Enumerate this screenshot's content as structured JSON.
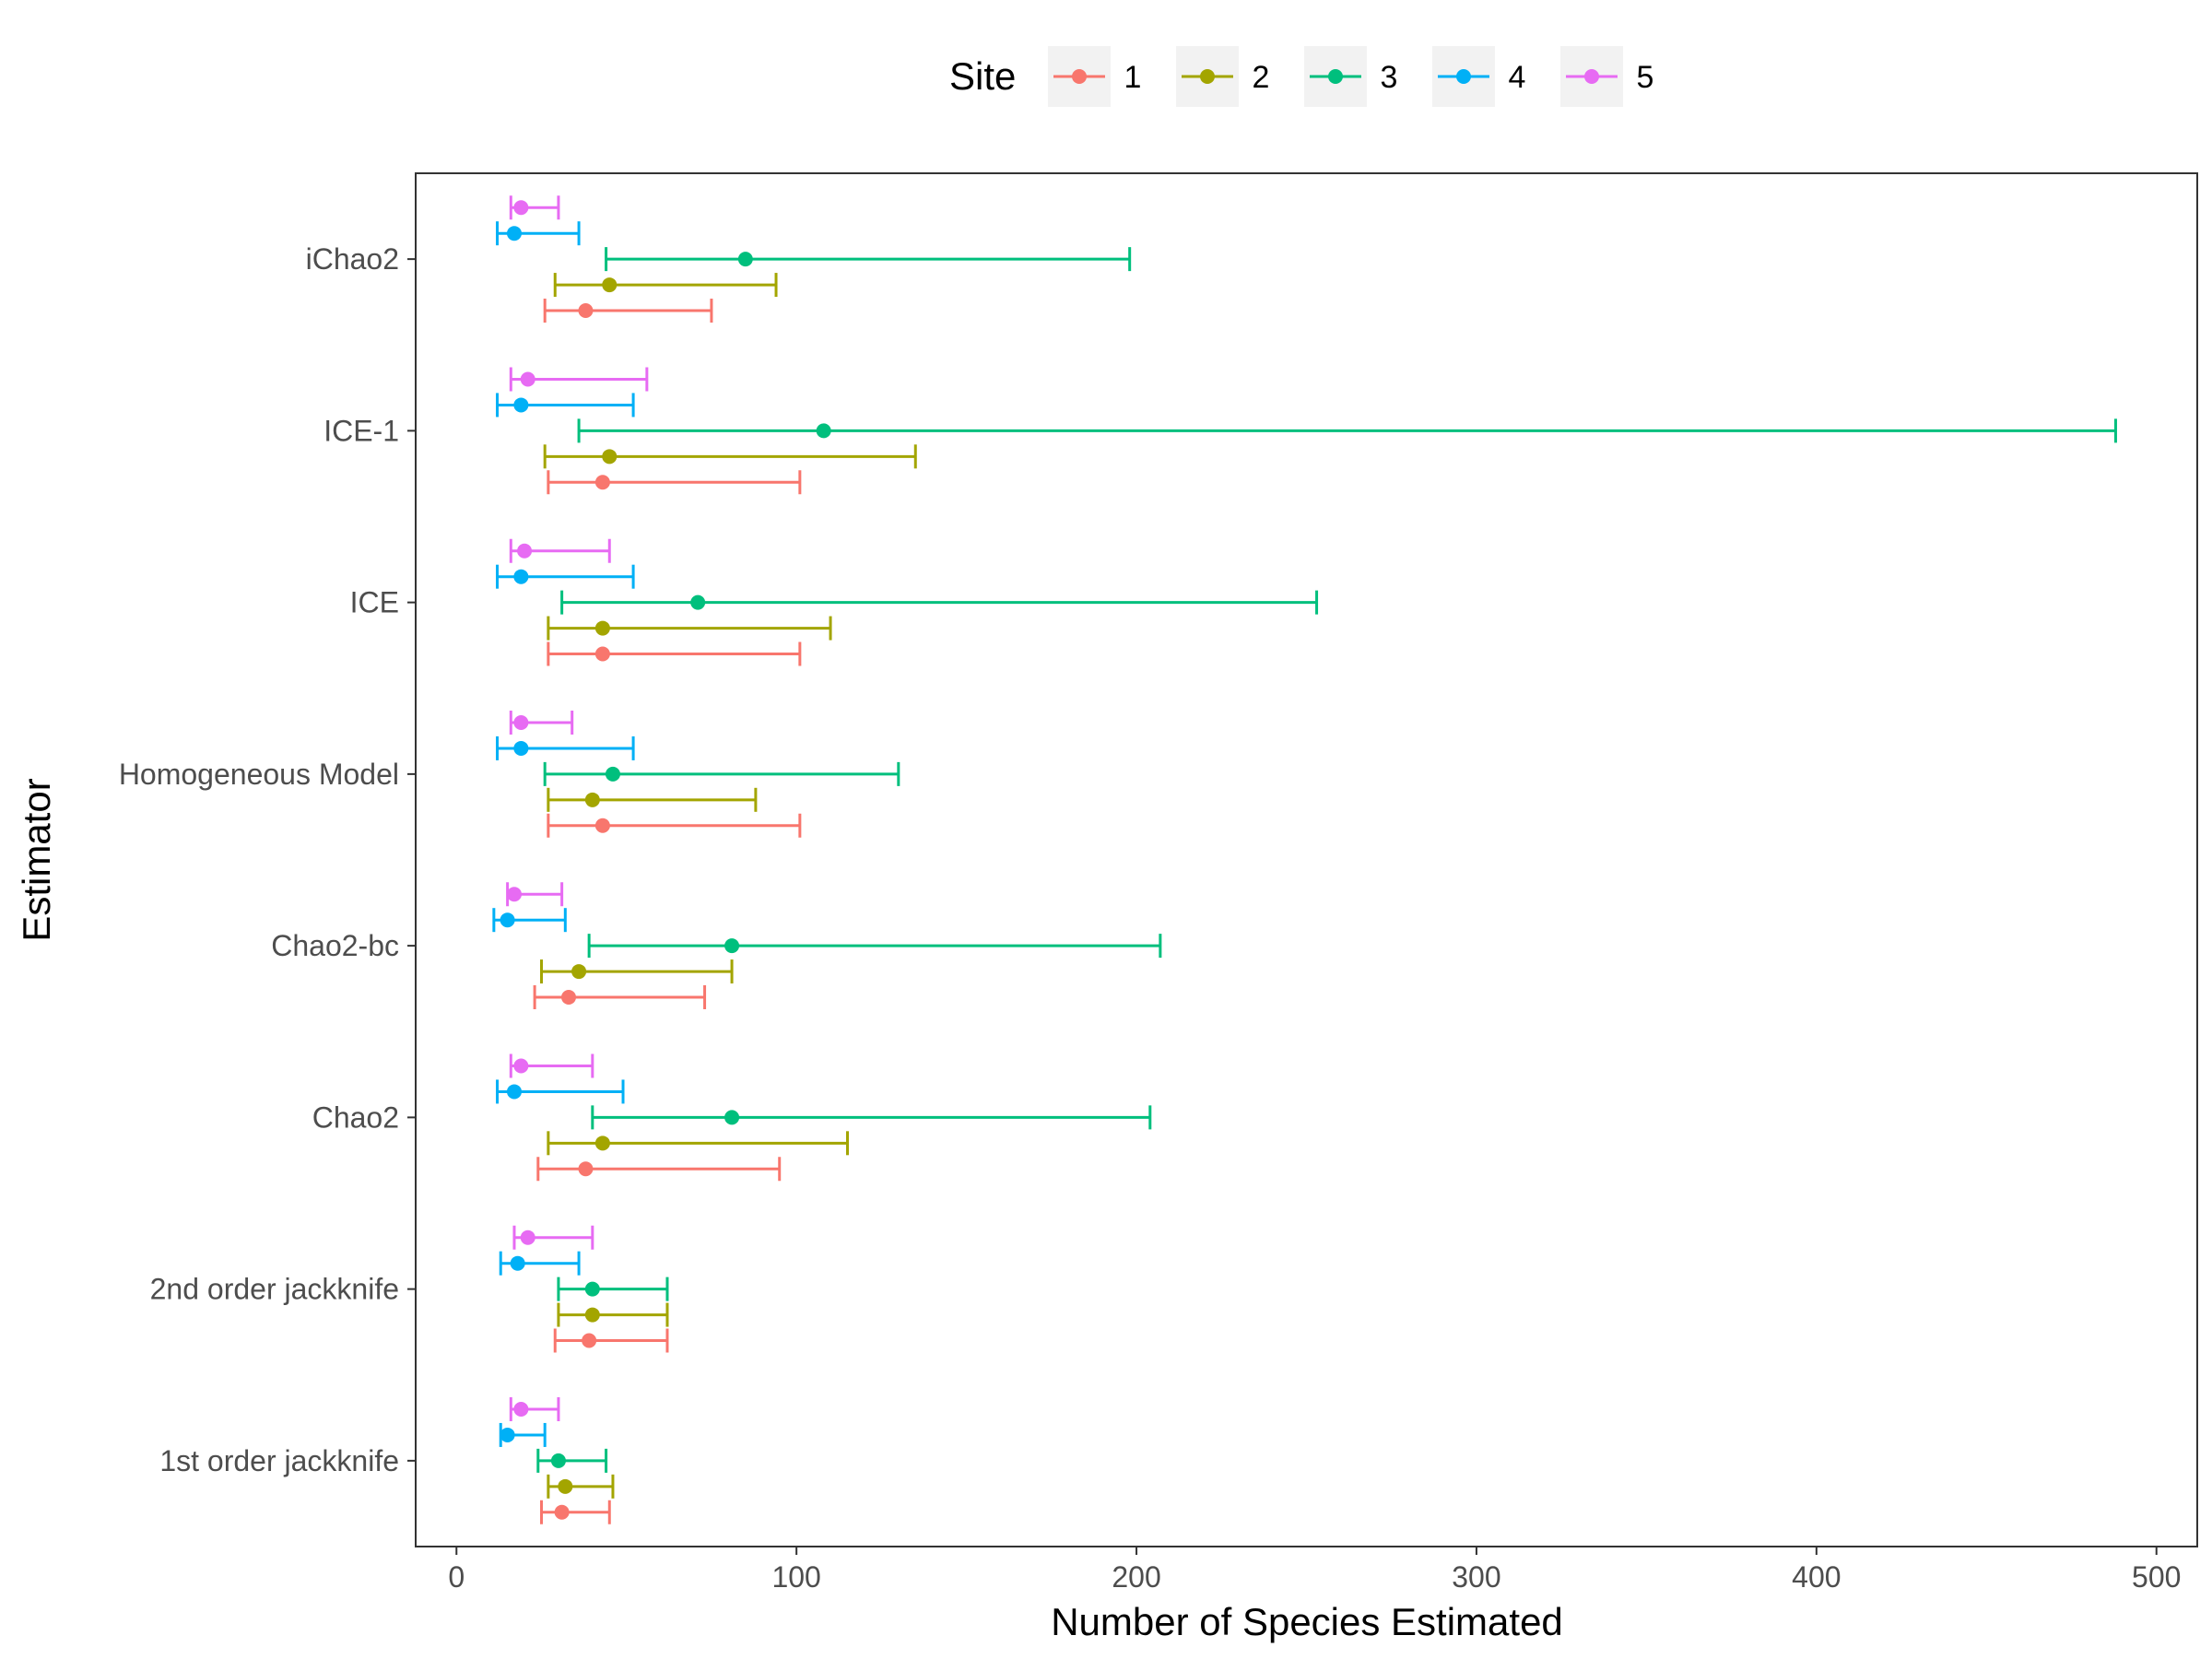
{
  "chart_data": {
    "type": "errorbar",
    "orientation": "horizontal",
    "xlabel": "Number of Species Estimated",
    "ylabel": "Estimator",
    "xlim": [
      -12,
      512
    ],
    "xticks": [
      0,
      100,
      200,
      300,
      400,
      500
    ],
    "grid": false,
    "legend": {
      "title": "Site",
      "position": "top",
      "entries": [
        "1",
        "2",
        "3",
        "4",
        "5"
      ]
    },
    "colors": {
      "1": "#F8766D",
      "2": "#A3A500",
      "3": "#00BF7D",
      "4": "#00B0F6",
      "5": "#E76BF3"
    },
    "categories": [
      "1st order jackknife",
      "2nd order jackknife",
      "Chao2",
      "Chao2-bc",
      "Homogeneous Model",
      "ICE",
      "ICE-1",
      "iChao2"
    ],
    "series": [
      {
        "name": "1",
        "estimate": [
          31,
          39,
          38,
          33,
          43,
          43,
          43,
          38
        ],
        "lower": [
          25,
          29,
          24,
          23,
          27,
          27,
          27,
          26
        ],
        "upper": [
          45,
          62,
          95,
          73,
          101,
          101,
          101,
          75
        ]
      },
      {
        "name": "2",
        "estimate": [
          32,
          40,
          43,
          36,
          40,
          43,
          45,
          45
        ],
        "lower": [
          27,
          30,
          27,
          25,
          27,
          27,
          26,
          29
        ],
        "upper": [
          46,
          62,
          115,
          81,
          88,
          110,
          135,
          94
        ]
      },
      {
        "name": "3",
        "estimate": [
          30,
          40,
          81,
          81,
          46,
          71,
          108,
          85
        ],
        "lower": [
          24,
          30,
          40,
          39,
          26,
          31,
          36,
          44
        ],
        "upper": [
          44,
          62,
          204,
          207,
          130,
          253,
          488,
          198
        ]
      },
      {
        "name": "4",
        "estimate": [
          15,
          18,
          17,
          15,
          19,
          19,
          19,
          17
        ],
        "lower": [
          13,
          13,
          12,
          11,
          12,
          12,
          12,
          12
        ],
        "upper": [
          26,
          36,
          49,
          32,
          52,
          52,
          52,
          36
        ]
      },
      {
        "name": "5",
        "estimate": [
          19,
          21,
          19,
          17,
          19,
          20,
          21,
          19
        ],
        "lower": [
          16,
          17,
          16,
          15,
          16,
          16,
          16,
          16
        ],
        "upper": [
          30,
          40,
          40,
          31,
          34,
          45,
          56,
          30
        ]
      }
    ]
  }
}
